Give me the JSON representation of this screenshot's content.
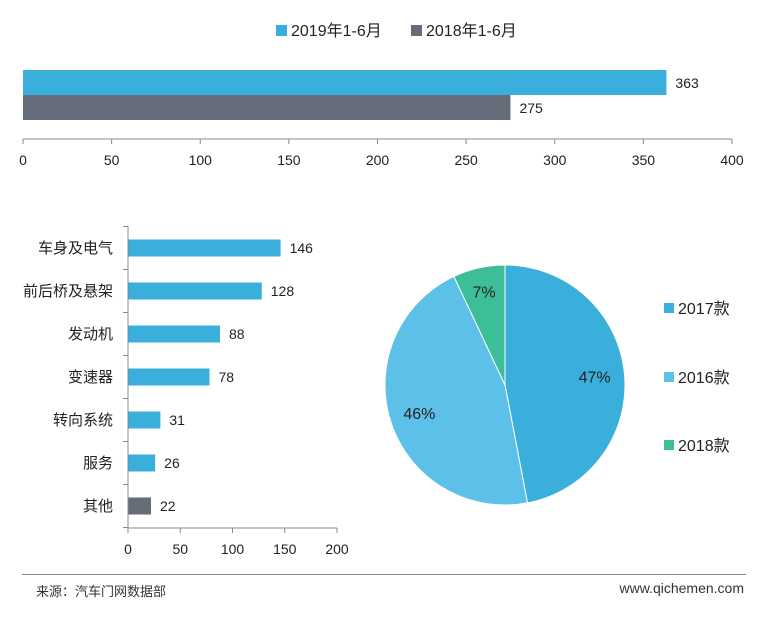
{
  "chart_data": [
    {
      "type": "bar",
      "orientation": "horizontal",
      "series": [
        {
          "name": "2019年1-6月",
          "values": [
            363
          ],
          "color": "#3aafdc"
        },
        {
          "name": "2018年1-6月",
          "values": [
            275
          ],
          "color": "#666d7a"
        }
      ],
      "xlim": [
        0,
        400
      ],
      "xticks": [
        0,
        50,
        100,
        150,
        200,
        250,
        300,
        350,
        400
      ],
      "legend": "top"
    },
    {
      "type": "bar",
      "orientation": "horizontal",
      "categories": [
        "车身及电气",
        "前后桥及悬架",
        "发动机",
        "变速器",
        "转向系统",
        "服务",
        "其他"
      ],
      "values": [
        146,
        128,
        88,
        78,
        31,
        26,
        22
      ],
      "colors": [
        "#3aafdc",
        "#3aafdc",
        "#3aafdc",
        "#3aafdc",
        "#3aafdc",
        "#3aafdc",
        "#666d7a"
      ],
      "xlim": [
        0,
        200
      ],
      "xticks": [
        0,
        50,
        100,
        150,
        200
      ]
    },
    {
      "type": "pie",
      "labels": [
        "2017款",
        "2016款",
        "2018款"
      ],
      "values": [
        47,
        46,
        7
      ],
      "value_labels": [
        "47%",
        "46%",
        "7%"
      ],
      "colors": [
        "#3aafdc",
        "#5cc0e8",
        "#3cbf98"
      ],
      "legend": "right"
    }
  ],
  "footer": {
    "source": "来源：汽车门网数据部",
    "site": "www.qichemen.com"
  }
}
